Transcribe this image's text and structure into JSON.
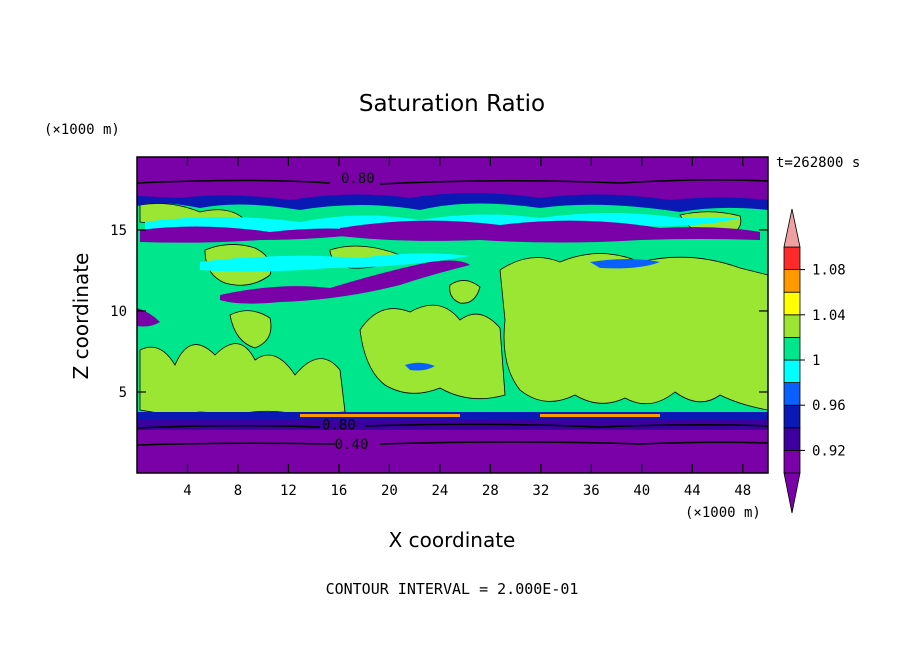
{
  "chart_data": {
    "type": "heatmap",
    "title": "Saturation Ratio",
    "xlabel": "X coordinate",
    "ylabel": "Z coordinate",
    "x_unit": "(×1000 m)",
    "y_unit": "(×1000 m)",
    "time_label": "t=262800 s",
    "footer": "CONTOUR INTERVAL = 2.000E-01",
    "xlim": [
      0,
      50
    ],
    "ylim": [
      0,
      19.5
    ],
    "x_ticks": [
      4,
      8,
      12,
      16,
      20,
      24,
      28,
      32,
      36,
      40,
      44,
      48
    ],
    "y_ticks": [
      5,
      10,
      15
    ],
    "colorbar": {
      "levels": [
        0.9,
        0.92,
        0.94,
        0.96,
        0.98,
        1.0,
        1.02,
        1.04,
        1.06,
        1.08,
        1.1
      ],
      "tick_labels": [
        "0.92",
        "0.96",
        "1",
        "1.04",
        "1.08"
      ],
      "tick_values": [
        0.92,
        0.96,
        1.0,
        1.04,
        1.08
      ],
      "colors": [
        "#7a00a8",
        "#3c00a0",
        "#0a18b4",
        "#0a60ff",
        "#00ffff",
        "#00e68c",
        "#9be632",
        "#ffff00",
        "#ff9900",
        "#ff2a2a",
        "#f0a0a0"
      ],
      "extend": "both"
    },
    "contour_labels": [
      {
        "text": "0.80",
        "x": 17.5,
        "y": 18.2
      },
      {
        "text": "0.80",
        "x": 16.0,
        "y": 3.0
      },
      {
        "text": "0.40",
        "x": 17.0,
        "y": 1.8
      }
    ],
    "regions": {
      "top_dry": [
        19.5,
        18.0
      ],
      "upper_band": [
        18.0,
        17.0
      ],
      "cloud_layer": [
        17.0,
        3.4
      ],
      "low_band": [
        3.4,
        2.6
      ],
      "bottom_dry": [
        2.6,
        0.0
      ]
    }
  }
}
